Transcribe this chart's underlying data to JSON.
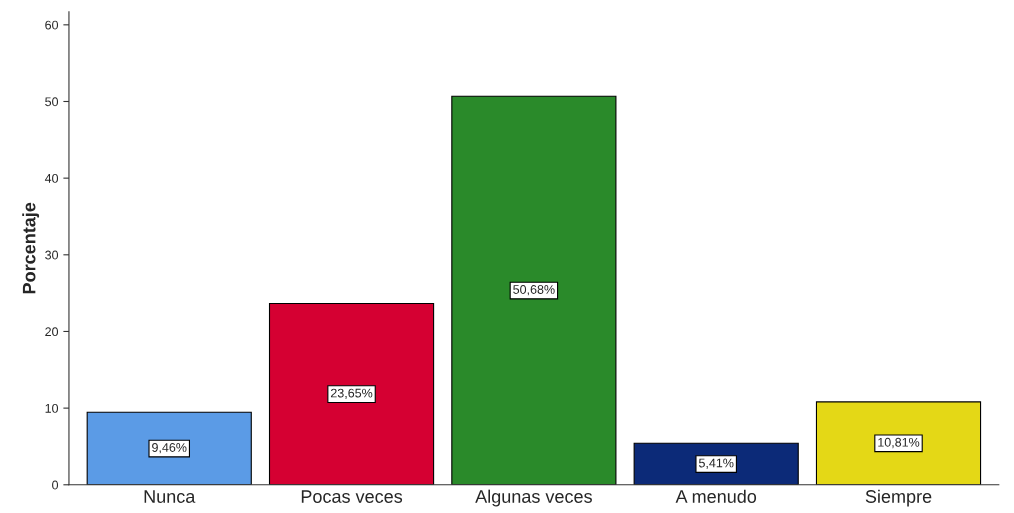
{
  "chart_data": {
    "type": "bar",
    "ylabel": "Porcentaje",
    "categories": [
      "Nunca",
      "Pocas veces",
      "Algunas veces",
      "A menudo",
      "Siempre"
    ],
    "values": [
      9.46,
      23.65,
      50.68,
      5.41,
      10.81
    ],
    "colors": [
      "#5b9be6",
      "#d50032",
      "#2a8a2a",
      "#0c2a78",
      "#e4d816"
    ],
    "value_labels": [
      "9,46%",
      "23,65%",
      "50,68%",
      "5,41%",
      "10,81%"
    ],
    "ylim": [
      0,
      61.7
    ],
    "yticks": [
      0,
      10,
      20,
      30,
      40,
      50,
      60
    ],
    "grid": false,
    "legend": false
  }
}
